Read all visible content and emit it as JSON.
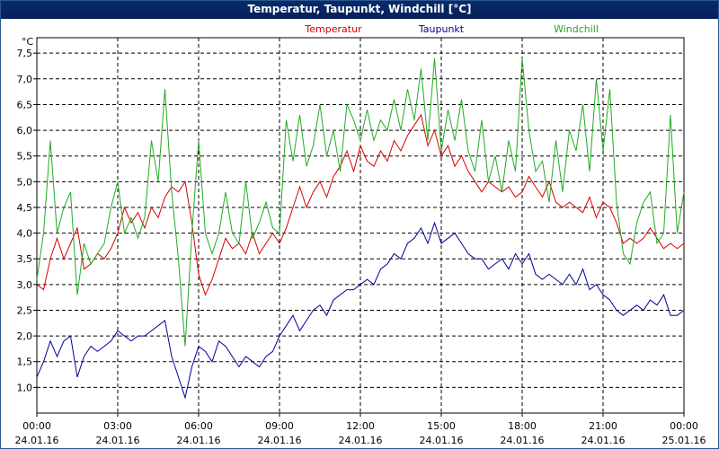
{
  "window": {
    "title": "Temperatur, Taupunkt, Windchill [°C]"
  },
  "chart_data": {
    "type": "line",
    "title": "Temperatur, Taupunkt, Windchill [°C]",
    "ylabel": "°C",
    "ylim": [
      0.5,
      7.8
    ],
    "yticks": [
      1.0,
      1.5,
      2.0,
      2.5,
      3.0,
      3.5,
      4.0,
      4.5,
      5.0,
      5.5,
      6.0,
      6.5,
      7.0,
      7.5
    ],
    "ytick_labels": [
      "1,0",
      "1,5",
      "2,0",
      "2,5",
      "3,0",
      "3,5",
      "4,0",
      "4,5",
      "5,0",
      "5,5",
      "6,0",
      "6,5",
      "7,0",
      "7,5"
    ],
    "xlim": [
      0,
      24
    ],
    "xticks": [
      {
        "x": 0,
        "time": "00:00",
        "date": "24.01.16"
      },
      {
        "x": 3,
        "time": "03:00",
        "date": "24.01.16"
      },
      {
        "x": 6,
        "time": "06:00",
        "date": "24.01.16"
      },
      {
        "x": 9,
        "time": "09:00",
        "date": "24.01.16"
      },
      {
        "x": 12,
        "time": "12:00",
        "date": "24.01.16"
      },
      {
        "x": 15,
        "time": "15:00",
        "date": "24.01.16"
      },
      {
        "x": 18,
        "time": "18:00",
        "date": "24.01.16"
      },
      {
        "x": 21,
        "time": "21:00",
        "date": "24.01.16"
      },
      {
        "x": 24,
        "time": "00:00",
        "date": "25.01.16"
      }
    ],
    "grid": true,
    "series": [
      {
        "name": "Temperatur",
        "color": "#d40000",
        "x": [
          0,
          0.25,
          0.5,
          0.75,
          1,
          1.25,
          1.5,
          1.75,
          2,
          2.25,
          2.5,
          2.75,
          3,
          3.25,
          3.5,
          3.75,
          4,
          4.25,
          4.5,
          4.75,
          5,
          5.25,
          5.5,
          5.75,
          6,
          6.25,
          6.5,
          6.75,
          7,
          7.25,
          7.5,
          7.75,
          8,
          8.25,
          8.5,
          8.75,
          9,
          9.25,
          9.5,
          9.75,
          10,
          10.25,
          10.5,
          10.75,
          11,
          11.25,
          11.5,
          11.75,
          12,
          12.25,
          12.5,
          12.75,
          13,
          13.25,
          13.5,
          13.75,
          14,
          14.25,
          14.5,
          14.75,
          15,
          15.25,
          15.5,
          15.75,
          16,
          16.25,
          16.5,
          16.75,
          17,
          17.25,
          17.5,
          17.75,
          18,
          18.25,
          18.5,
          18.75,
          19,
          19.25,
          19.5,
          19.75,
          20,
          20.25,
          20.5,
          20.75,
          21,
          21.25,
          21.5,
          21.75,
          22,
          22.25,
          22.5,
          22.75,
          23,
          23.25,
          23.5,
          23.75,
          24
        ],
        "values": [
          3.0,
          2.9,
          3.5,
          3.9,
          3.5,
          3.8,
          4.1,
          3.3,
          3.4,
          3.6,
          3.5,
          3.7,
          4.0,
          4.5,
          4.2,
          4.4,
          4.1,
          4.5,
          4.3,
          4.7,
          4.9,
          4.8,
          5.0,
          4.2,
          3.2,
          2.8,
          3.1,
          3.5,
          3.9,
          3.7,
          3.8,
          3.6,
          4.0,
          3.6,
          3.8,
          4.0,
          3.8,
          4.1,
          4.5,
          4.9,
          4.5,
          4.8,
          5.0,
          4.7,
          5.1,
          5.3,
          5.6,
          5.2,
          5.7,
          5.4,
          5.3,
          5.6,
          5.4,
          5.8,
          5.6,
          5.9,
          6.1,
          6.3,
          5.7,
          6.0,
          5.5,
          5.7,
          5.3,
          5.5,
          5.2,
          5.0,
          4.8,
          5.0,
          4.9,
          4.8,
          4.9,
          4.7,
          4.8,
          5.1,
          4.9,
          4.7,
          5.0,
          4.6,
          4.5,
          4.6,
          4.5,
          4.4,
          4.7,
          4.3,
          4.6,
          4.5,
          4.2,
          3.8,
          3.9,
          3.8,
          3.9,
          4.1,
          3.9,
          3.7,
          3.8,
          3.7,
          3.8
        ],
        "legend_x": 11
      },
      {
        "name": "Taupunkt",
        "color": "#000099",
        "x": [
          0,
          0.25,
          0.5,
          0.75,
          1,
          1.25,
          1.5,
          1.75,
          2,
          2.25,
          2.5,
          2.75,
          3,
          3.25,
          3.5,
          3.75,
          4,
          4.25,
          4.5,
          4.75,
          5,
          5.25,
          5.5,
          5.75,
          6,
          6.25,
          6.5,
          6.75,
          7,
          7.25,
          7.5,
          7.75,
          8,
          8.25,
          8.5,
          8.75,
          9,
          9.25,
          9.5,
          9.75,
          10,
          10.25,
          10.5,
          10.75,
          11,
          11.25,
          11.5,
          11.75,
          12,
          12.25,
          12.5,
          12.75,
          13,
          13.25,
          13.5,
          13.75,
          14,
          14.25,
          14.5,
          14.75,
          15,
          15.25,
          15.5,
          15.75,
          16,
          16.25,
          16.5,
          16.75,
          17,
          17.25,
          17.5,
          17.75,
          18,
          18.25,
          18.5,
          18.75,
          19,
          19.25,
          19.5,
          19.75,
          20,
          20.25,
          20.5,
          20.75,
          21,
          21.25,
          21.5,
          21.75,
          22,
          22.25,
          22.5,
          22.75,
          23,
          23.25,
          23.5,
          23.75,
          24
        ],
        "values": [
          1.2,
          1.5,
          1.9,
          1.6,
          1.9,
          2.0,
          1.2,
          1.6,
          1.8,
          1.7,
          1.8,
          1.9,
          2.1,
          2.0,
          1.9,
          2.0,
          2.0,
          2.1,
          2.2,
          2.3,
          1.6,
          1.2,
          0.8,
          1.4,
          1.8,
          1.7,
          1.5,
          1.9,
          1.8,
          1.6,
          1.4,
          1.6,
          1.5,
          1.4,
          1.6,
          1.7,
          2.0,
          2.2,
          2.4,
          2.1,
          2.3,
          2.5,
          2.6,
          2.4,
          2.7,
          2.8,
          2.9,
          2.9,
          3.0,
          3.1,
          3.0,
          3.3,
          3.4,
          3.6,
          3.5,
          3.8,
          3.9,
          4.1,
          3.8,
          4.2,
          3.8,
          3.9,
          4.0,
          3.8,
          3.6,
          3.5,
          3.5,
          3.3,
          3.4,
          3.5,
          3.3,
          3.6,
          3.4,
          3.6,
          3.2,
          3.1,
          3.2,
          3.1,
          3.0,
          3.2,
          3.0,
          3.3,
          2.9,
          3.0,
          2.8,
          2.7,
          2.5,
          2.4,
          2.5,
          2.6,
          2.5,
          2.7,
          2.6,
          2.8,
          2.4,
          2.4,
          2.5
        ],
        "legend_x": 15
      },
      {
        "name": "Windchill",
        "color": "#22aa22",
        "x": [
          0,
          0.25,
          0.5,
          0.75,
          1,
          1.25,
          1.5,
          1.75,
          2,
          2.25,
          2.5,
          2.75,
          3,
          3.25,
          3.5,
          3.75,
          4,
          4.25,
          4.5,
          4.75,
          5,
          5.25,
          5.5,
          5.75,
          6,
          6.25,
          6.5,
          6.75,
          7,
          7.25,
          7.5,
          7.75,
          8,
          8.25,
          8.5,
          8.75,
          9,
          9.25,
          9.5,
          9.75,
          10,
          10.25,
          10.5,
          10.75,
          11,
          11.25,
          11.5,
          11.75,
          12,
          12.25,
          12.5,
          12.75,
          13,
          13.25,
          13.5,
          13.75,
          14,
          14.25,
          14.5,
          14.75,
          15,
          15.25,
          15.5,
          15.75,
          16,
          16.25,
          16.5,
          16.75,
          17,
          17.25,
          17.5,
          17.75,
          18,
          18.25,
          18.5,
          18.75,
          19,
          19.25,
          19.5,
          19.75,
          20,
          20.25,
          20.5,
          20.75,
          21,
          21.25,
          21.5,
          21.75,
          22,
          22.25,
          22.5,
          22.75,
          23,
          23.25,
          23.5,
          23.75,
          24
        ],
        "values": [
          3.1,
          4.0,
          5.8,
          4.0,
          4.5,
          4.8,
          2.8,
          3.8,
          3.4,
          3.6,
          3.8,
          4.5,
          5.0,
          4.0,
          4.3,
          3.9,
          4.3,
          5.8,
          5.0,
          6.8,
          4.8,
          3.5,
          1.8,
          4.0,
          5.8,
          4.0,
          3.6,
          4.0,
          4.8,
          4.0,
          3.8,
          5.0,
          3.9,
          4.2,
          4.6,
          4.1,
          4.0,
          6.2,
          5.4,
          6.3,
          5.3,
          5.7,
          6.5,
          5.5,
          6.0,
          5.2,
          6.5,
          6.2,
          5.8,
          6.4,
          5.8,
          6.2,
          6.0,
          6.6,
          6.0,
          6.8,
          6.2,
          7.2,
          5.8,
          7.4,
          5.6,
          6.4,
          5.8,
          6.6,
          5.6,
          5.2,
          6.2,
          5.0,
          5.5,
          4.8,
          5.8,
          5.2,
          7.4,
          6.0,
          5.2,
          5.4,
          4.6,
          5.8,
          4.8,
          6.0,
          5.6,
          6.5,
          5.2,
          7.0,
          5.6,
          6.8,
          4.6,
          3.6,
          3.4,
          4.2,
          4.6,
          4.8,
          3.8,
          4.0,
          6.3,
          4.0,
          4.8
        ],
        "legend_x": 20
      }
    ]
  }
}
